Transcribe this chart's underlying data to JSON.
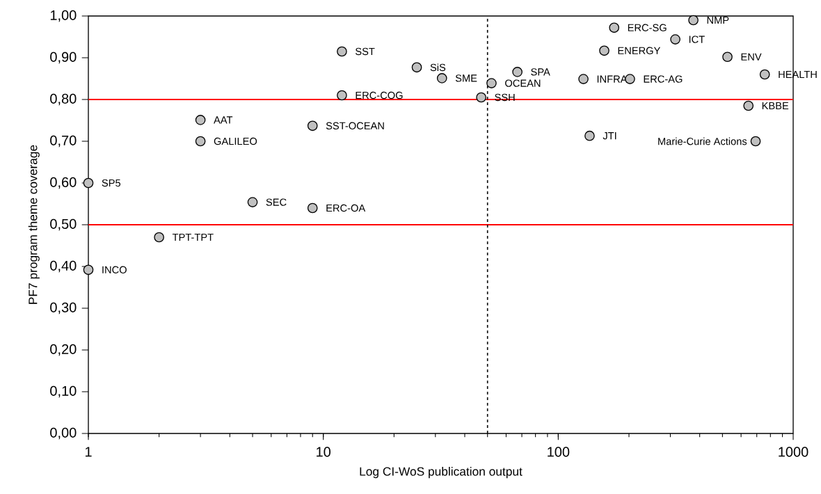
{
  "chart_data": {
    "type": "scatter",
    "xlabel": "Log CI-WoS publication output",
    "ylabel": "PF7 program theme coverage",
    "log": "x",
    "marker": "circle",
    "xlim": [
      1,
      1000
    ],
    "xticks": [
      1,
      10,
      100,
      1000
    ],
    "ylim": [
      0,
      1
    ],
    "yticks": [
      {
        "value": 0,
        "label": "0,00"
      },
      {
        "value": 0.1,
        "label": "0,10"
      },
      {
        "value": 0.2,
        "label": "0,20"
      },
      {
        "value": 0.3,
        "label": "0,30"
      },
      {
        "value": 0.4,
        "label": "0,40"
      },
      {
        "value": 0.5,
        "label": "0,50"
      },
      {
        "value": 0.6,
        "label": "0,60"
      },
      {
        "value": 0.7,
        "label": "0,70"
      },
      {
        "value": 0.8,
        "label": "0,80"
      },
      {
        "value": 0.9,
        "label": "0,90"
      },
      {
        "value": 1,
        "label": "1,00"
      }
    ],
    "series": [
      {
        "color": "#c0c0c0",
        "x": [
          12,
          12,
          3,
          3,
          9,
          1,
          5,
          9,
          2,
          1,
          25,
          32,
          52,
          47,
          67,
          128,
          202,
          157,
          173,
          376,
          315,
          525,
          757,
          645,
          136,
          692
        ],
        "values": [
          0.915,
          0.81,
          0.751,
          0.7,
          0.737,
          0.6,
          0.554,
          0.54,
          0.47,
          0.392,
          0.877,
          0.851,
          0.839,
          0.805,
          0.866,
          0.849,
          0.849,
          0.917,
          0.972,
          0.99,
          0.944,
          0.902,
          0.86,
          0.785,
          0.713,
          0.7
        ]
      }
    ],
    "annotations": [
      {
        "text": "SST",
        "x": 12,
        "y": 0.915
      },
      {
        "text": "ERC-COG",
        "x": 12,
        "y": 0.81
      },
      {
        "text": "AAT",
        "x": 3,
        "y": 0.751
      },
      {
        "text": "GALILEO",
        "x": 3,
        "y": 0.7
      },
      {
        "text": "SST-OCEAN",
        "x": 9,
        "y": 0.737
      },
      {
        "text": "SP5",
        "x": 1,
        "y": 0.6
      },
      {
        "text": "SEC",
        "x": 5,
        "y": 0.554
      },
      {
        "text": "ERC-OA",
        "x": 9,
        "y": 0.54
      },
      {
        "text": "TPT-TPT",
        "x": 2,
        "y": 0.47
      },
      {
        "text": "INCO",
        "x": 1,
        "y": 0.392
      },
      {
        "text": "SiS",
        "x": 25,
        "y": 0.877
      },
      {
        "text": "SME",
        "x": 32,
        "y": 0.851
      },
      {
        "text": "OCEAN",
        "x": 52,
        "y": 0.839
      },
      {
        "text": "SSH",
        "x": 47,
        "y": 0.805
      },
      {
        "text": "SPA",
        "x": 67,
        "y": 0.866
      },
      {
        "text": "INFRA",
        "x": 128,
        "y": 0.849
      },
      {
        "text": "ERC-AG",
        "x": 202,
        "y": 0.849
      },
      {
        "text": "ENERGY",
        "x": 157,
        "y": 0.917
      },
      {
        "text": "ERC-SG",
        "x": 173,
        "y": 0.972
      },
      {
        "text": "NMP",
        "x": 376,
        "y": 0.99
      },
      {
        "text": "ICT",
        "x": 315,
        "y": 0.944
      },
      {
        "text": "ENV",
        "x": 525,
        "y": 0.902
      },
      {
        "text": "HEALTH",
        "x": 757,
        "y": 0.86
      },
      {
        "text": "KBBE",
        "x": 645,
        "y": 0.785
      },
      {
        "text": "JTI",
        "x": 136,
        "y": 0.713
      },
      {
        "text": "Marie-Curie Actions",
        "x": 692,
        "y": 0.7
      }
    ],
    "ref_lines": [
      {
        "axis": "y",
        "value": 0.8,
        "color": "#ff0000",
        "line_style": "solid"
      },
      {
        "axis": "y",
        "value": 0.5,
        "color": "#ff0000",
        "line_style": "solid"
      },
      {
        "axis": "x",
        "value": 50,
        "color": "#000000",
        "line_style": "dashed"
      }
    ]
  }
}
